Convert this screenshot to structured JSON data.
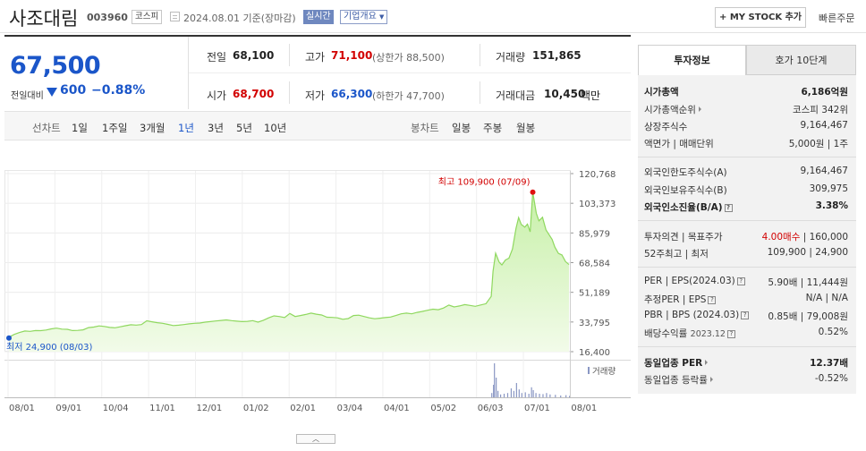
{
  "header": {
    "company": "사조대림",
    "code": "003960",
    "market_badge": "코스피",
    "date": "2024.08.01",
    "basis": "기준(장마감)",
    "realtime": "실시간",
    "corp_info": "기업개요",
    "my_stock": "+ MY STOCK 추가",
    "fast_order": "빠른주문"
  },
  "price": {
    "current": "67,500",
    "change_label": "전일대비",
    "change": "600",
    "change_pct": "−0.88%",
    "prev_close_label": "전일",
    "prev_close": "68,100",
    "high_label": "고가",
    "high": "71,100",
    "upper_limit": "(상한가 88,500)",
    "volume_label": "거래량",
    "volume": "151,865",
    "open_label": "시가",
    "open": "68,700",
    "low_label": "저가",
    "low": "66,300",
    "lower_limit": "(하한가 47,700)",
    "amount_label": "거래대금",
    "amount": "10,450",
    "amount_unit": "백만"
  },
  "periods": {
    "line_label": "선차트",
    "line_items": [
      "1일",
      "1주일",
      "3개월",
      "1년",
      "3년",
      "5년",
      "10년"
    ],
    "active": "1년",
    "candle_label": "봉차트",
    "candle_items": [
      "일봉",
      "주봉",
      "월봉"
    ]
  },
  "chart_data": {
    "type": "area",
    "x_ticks": [
      "08/01",
      "09/01",
      "10/04",
      "11/01",
      "12/01",
      "01/02",
      "02/01",
      "03/04",
      "04/01",
      "05/02",
      "06/03",
      "07/01",
      "08/01"
    ],
    "y_ticks": [
      "120,768",
      "103,373",
      "85,979",
      "68,584",
      "51,189",
      "33,795",
      "16,400"
    ],
    "ylim": [
      16400,
      120768
    ],
    "high_label": "최고 109,900 (07/09)",
    "low_label": "최저 24,900 (08/03)",
    "volume_label": "거래량",
    "series": [
      {
        "x": 0,
        "y": 24900
      },
      {
        "x": 6,
        "y": 26500
      },
      {
        "x": 12,
        "y": 27600
      },
      {
        "x": 18,
        "y": 28500
      },
      {
        "x": 24,
        "y": 28300
      },
      {
        "x": 30,
        "y": 28800
      },
      {
        "x": 36,
        "y": 28700
      },
      {
        "x": 42,
        "y": 29100
      },
      {
        "x": 48,
        "y": 29800
      },
      {
        "x": 54,
        "y": 30200
      },
      {
        "x": 60,
        "y": 29600
      },
      {
        "x": 66,
        "y": 29500
      },
      {
        "x": 72,
        "y": 28800
      },
      {
        "x": 78,
        "y": 28900
      },
      {
        "x": 84,
        "y": 29200
      },
      {
        "x": 90,
        "y": 30500
      },
      {
        "x": 96,
        "y": 30800
      },
      {
        "x": 102,
        "y": 31500
      },
      {
        "x": 108,
        "y": 31200
      },
      {
        "x": 114,
        "y": 30600
      },
      {
        "x": 120,
        "y": 30400
      },
      {
        "x": 126,
        "y": 31000
      },
      {
        "x": 132,
        "y": 31600
      },
      {
        "x": 138,
        "y": 32200
      },
      {
        "x": 144,
        "y": 32000
      },
      {
        "x": 150,
        "y": 32300
      },
      {
        "x": 156,
        "y": 34500
      },
      {
        "x": 162,
        "y": 33900
      },
      {
        "x": 168,
        "y": 33400
      },
      {
        "x": 174,
        "y": 33000
      },
      {
        "x": 180,
        "y": 32400
      },
      {
        "x": 186,
        "y": 31700
      },
      {
        "x": 192,
        "y": 31900
      },
      {
        "x": 198,
        "y": 32300
      },
      {
        "x": 204,
        "y": 32700
      },
      {
        "x": 210,
        "y": 33000
      },
      {
        "x": 216,
        "y": 33200
      },
      {
        "x": 222,
        "y": 33700
      },
      {
        "x": 228,
        "y": 34000
      },
      {
        "x": 234,
        "y": 34400
      },
      {
        "x": 240,
        "y": 34700
      },
      {
        "x": 246,
        "y": 35000
      },
      {
        "x": 252,
        "y": 34600
      },
      {
        "x": 258,
        "y": 34300
      },
      {
        "x": 264,
        "y": 34000
      },
      {
        "x": 270,
        "y": 34200
      },
      {
        "x": 276,
        "y": 34600
      },
      {
        "x": 282,
        "y": 33700
      },
      {
        "x": 288,
        "y": 34800
      },
      {
        "x": 294,
        "y": 36200
      },
      {
        "x": 300,
        "y": 37400
      },
      {
        "x": 306,
        "y": 37000
      },
      {
        "x": 312,
        "y": 36400
      },
      {
        "x": 318,
        "y": 38800
      },
      {
        "x": 324,
        "y": 37000
      },
      {
        "x": 330,
        "y": 37600
      },
      {
        "x": 336,
        "y": 38200
      },
      {
        "x": 342,
        "y": 39000
      },
      {
        "x": 348,
        "y": 38400
      },
      {
        "x": 354,
        "y": 37900
      },
      {
        "x": 360,
        "y": 36600
      },
      {
        "x": 366,
        "y": 36500
      },
      {
        "x": 372,
        "y": 36200
      },
      {
        "x": 378,
        "y": 35400
      },
      {
        "x": 384,
        "y": 35800
      },
      {
        "x": 390,
        "y": 37600
      },
      {
        "x": 396,
        "y": 37800
      },
      {
        "x": 402,
        "y": 37000
      },
      {
        "x": 408,
        "y": 36200
      },
      {
        "x": 414,
        "y": 35700
      },
      {
        "x": 420,
        "y": 36000
      },
      {
        "x": 426,
        "y": 36400
      },
      {
        "x": 432,
        "y": 36700
      },
      {
        "x": 438,
        "y": 37600
      },
      {
        "x": 444,
        "y": 38600
      },
      {
        "x": 450,
        "y": 39000
      },
      {
        "x": 456,
        "y": 38600
      },
      {
        "x": 462,
        "y": 39400
      },
      {
        "x": 468,
        "y": 40000
      },
      {
        "x": 474,
        "y": 40700
      },
      {
        "x": 480,
        "y": 41300
      },
      {
        "x": 486,
        "y": 41000
      },
      {
        "x": 492,
        "y": 42000
      },
      {
        "x": 498,
        "y": 43700
      },
      {
        "x": 504,
        "y": 42600
      },
      {
        "x": 510,
        "y": 43200
      },
      {
        "x": 516,
        "y": 44000
      },
      {
        "x": 522,
        "y": 43500
      },
      {
        "x": 528,
        "y": 43000
      },
      {
        "x": 534,
        "y": 43800
      },
      {
        "x": 540,
        "y": 44500
      },
      {
        "x": 546,
        "y": 48800
      },
      {
        "x": 548,
        "y": 63500
      },
      {
        "x": 551,
        "y": 74100
      },
      {
        "x": 555,
        "y": 68800
      },
      {
        "x": 558,
        "y": 67200
      },
      {
        "x": 562,
        "y": 70100
      },
      {
        "x": 566,
        "y": 71200
      },
      {
        "x": 570,
        "y": 76500
      },
      {
        "x": 574,
        "y": 88700
      },
      {
        "x": 577,
        "y": 95000
      },
      {
        "x": 580,
        "y": 90900
      },
      {
        "x": 584,
        "y": 89400
      },
      {
        "x": 587,
        "y": 91200
      },
      {
        "x": 590,
        "y": 86600
      },
      {
        "x": 593,
        "y": 109900
      },
      {
        "x": 597,
        "y": 97500
      },
      {
        "x": 600,
        "y": 93100
      },
      {
        "x": 604,
        "y": 95200
      },
      {
        "x": 608,
        "y": 87800
      },
      {
        "x": 611,
        "y": 85300
      },
      {
        "x": 615,
        "y": 82100
      },
      {
        "x": 618,
        "y": 77700
      },
      {
        "x": 622,
        "y": 74000
      },
      {
        "x": 626,
        "y": 73100
      },
      {
        "x": 630,
        "y": 69200
      },
      {
        "x": 634,
        "y": 67500
      }
    ],
    "volume_bars": [
      {
        "x": 546,
        "v": 0.12
      },
      {
        "x": 548,
        "v": 0.35
      },
      {
        "x": 549,
        "v": 0.95
      },
      {
        "x": 551,
        "v": 0.55
      },
      {
        "x": 553,
        "v": 0.18
      },
      {
        "x": 556,
        "v": 0.08
      },
      {
        "x": 560,
        "v": 0.1
      },
      {
        "x": 564,
        "v": 0.12
      },
      {
        "x": 568,
        "v": 0.25
      },
      {
        "x": 571,
        "v": 0.18
      },
      {
        "x": 574,
        "v": 0.4
      },
      {
        "x": 577,
        "v": 0.22
      },
      {
        "x": 580,
        "v": 0.12
      },
      {
        "x": 584,
        "v": 0.14
      },
      {
        "x": 588,
        "v": 0.1
      },
      {
        "x": 591,
        "v": 0.28
      },
      {
        "x": 593,
        "v": 0.2
      },
      {
        "x": 596,
        "v": 0.12
      },
      {
        "x": 600,
        "v": 0.1
      },
      {
        "x": 604,
        "v": 0.09
      },
      {
        "x": 608,
        "v": 0.12
      },
      {
        "x": 612,
        "v": 0.08
      },
      {
        "x": 618,
        "v": 0.07
      },
      {
        "x": 624,
        "v": 0.05
      },
      {
        "x": 630,
        "v": 0.06
      },
      {
        "x": 634,
        "v": 0.04
      }
    ]
  },
  "tabs": {
    "invest_info": "투자정보",
    "hoga": "호가 10단계"
  },
  "invest": {
    "mcap_label": "시가총액",
    "mcap": "6,186억원",
    "mcap_rank_label": "시가총액순위",
    "mcap_rank": "코스피 342위",
    "shares_label": "상장주식수",
    "shares": "9,164,467",
    "par_label": "액면가 | 매매단위",
    "par": "5,000원 | 1주",
    "foreign_limit_label": "외국인한도주식수(A)",
    "foreign_limit": "9,164,467",
    "foreign_hold_label": "외국인보유주식수(B)",
    "foreign_hold": "309,975",
    "foreign_rate_label": "외국인소진율(B/A)",
    "foreign_rate": "3.38%",
    "opinion_label": "투자의견 | 목표주가",
    "opinion": "4.00매수",
    "target": "| 160,000",
    "w52_label": "52주최고 | 최저",
    "w52": "109,900 | 24,900",
    "per_label": "PER | EPS(2024.03)",
    "per": "5.90배 | 11,444원",
    "est_per_label": "추정PER | EPS",
    "est_per": "N/A | N/A",
    "pbr_label": "PBR | BPS (2024.03)",
    "pbr": "0.85배 | 79,008원",
    "div_label": "배당수익률",
    "div_date": "2023.12",
    "div": "0.52%",
    "ind_per_label": "동일업종 PER",
    "ind_per": "12.37배",
    "ind_rate_label": "동일업종 등락률",
    "ind_rate": "-0.52%"
  }
}
